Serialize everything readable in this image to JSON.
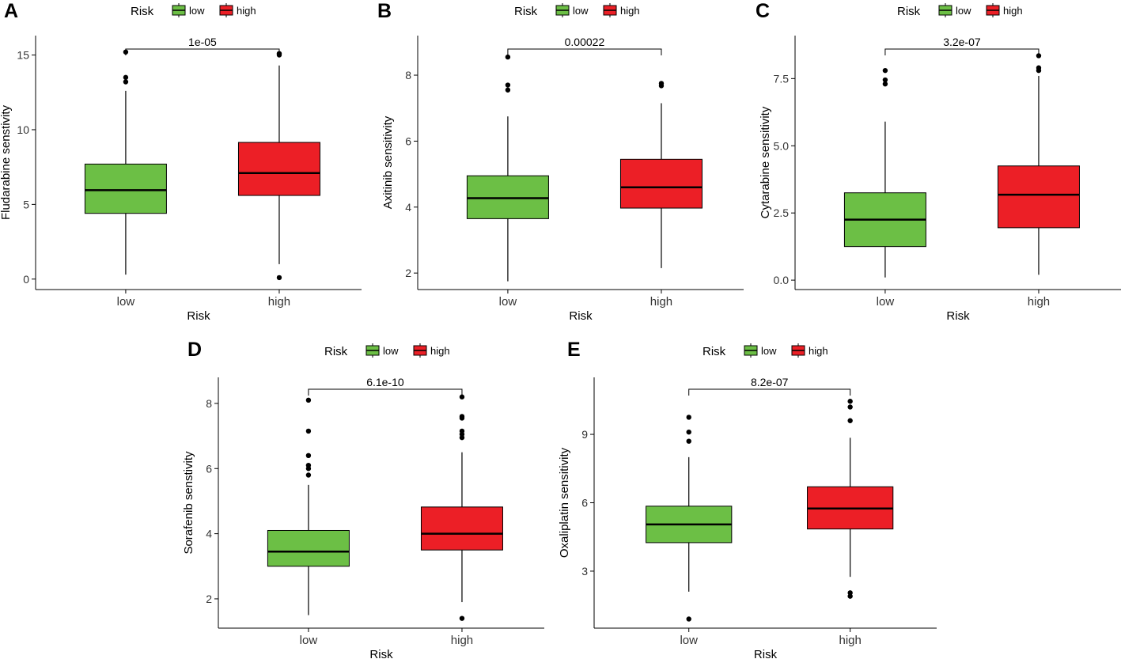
{
  "legend_title": "Risk",
  "colors": {
    "low": "#6cbf45",
    "high": "#ec1f26",
    "line": "#000000"
  },
  "chart_data": [
    {
      "panel": "A",
      "type": "box",
      "ylabel": "Fludarabine senstivity",
      "xlabel": "Risk",
      "categories": [
        "low",
        "high"
      ],
      "ylim": [
        -0.7,
        16.3
      ],
      "yticks": [
        0,
        5,
        10,
        15
      ],
      "tick_labels": [
        "0",
        "5",
        "10",
        "15"
      ],
      "pvalue": "1e-05",
      "legend": [
        "low",
        "high"
      ],
      "boxes": [
        {
          "group": "low",
          "whisker_low": 0.3,
          "q1": 4.4,
          "median": 5.95,
          "q3": 7.7,
          "whisker_high": 12.6,
          "outliers": [
            13.2,
            13.5,
            15.2
          ]
        },
        {
          "group": "high",
          "whisker_low": 1.0,
          "q1": 5.6,
          "median": 7.1,
          "q3": 9.15,
          "whisker_high": 14.3,
          "outliers": [
            0.1,
            15.0,
            15.1
          ]
        }
      ]
    },
    {
      "panel": "B",
      "type": "box",
      "ylabel": "Axitinib sensitivity",
      "xlabel": "Risk",
      "categories": [
        "low",
        "high"
      ],
      "ylim": [
        1.5,
        9.2
      ],
      "yticks": [
        2,
        4,
        6,
        8
      ],
      "tick_labels": [
        "2",
        "4",
        "6",
        "8"
      ],
      "pvalue": "0.00022",
      "legend": [
        "low",
        "high"
      ],
      "boxes": [
        {
          "group": "low",
          "whisker_low": 1.75,
          "q1": 3.65,
          "median": 4.27,
          "q3": 4.95,
          "whisker_high": 6.75,
          "outliers": [
            7.55,
            7.7,
            8.55
          ]
        },
        {
          "group": "high",
          "whisker_low": 2.15,
          "q1": 3.97,
          "median": 4.6,
          "q3": 5.45,
          "whisker_high": 7.15,
          "outliers": [
            7.68,
            7.75
          ]
        }
      ]
    },
    {
      "panel": "C",
      "type": "box",
      "ylabel": "Cytarabine sensitivity",
      "xlabel": "Risk",
      "categories": [
        "low",
        "high"
      ],
      "ylim": [
        -0.35,
        9.1
      ],
      "yticks": [
        0,
        2.5,
        5.0,
        7.5
      ],
      "tick_labels": [
        "0.0",
        "2.5",
        "5.0",
        "7.5"
      ],
      "pvalue": "3.2e-07",
      "legend": [
        "low",
        "high"
      ],
      "boxes": [
        {
          "group": "low",
          "whisker_low": 0.1,
          "q1": 1.25,
          "median": 2.25,
          "q3": 3.25,
          "whisker_high": 5.9,
          "outliers": [
            7.3,
            7.45,
            7.8
          ]
        },
        {
          "group": "high",
          "whisker_low": 0.2,
          "q1": 1.95,
          "median": 3.18,
          "q3": 4.25,
          "whisker_high": 7.6,
          "outliers": [
            7.8,
            7.9,
            8.35
          ]
        }
      ]
    },
    {
      "panel": "D",
      "type": "box",
      "ylabel": "Sorafenib senstivity",
      "xlabel": "Risk",
      "categories": [
        "low",
        "high"
      ],
      "ylim": [
        1.1,
        8.8
      ],
      "yticks": [
        2,
        4,
        6,
        8
      ],
      "tick_labels": [
        "2",
        "4",
        "6",
        "8"
      ],
      "pvalue": "6.1e-10",
      "legend": [
        "low",
        "high"
      ],
      "boxes": [
        {
          "group": "low",
          "whisker_low": 1.5,
          "q1": 3.0,
          "median": 3.45,
          "q3": 4.1,
          "whisker_high": 5.5,
          "outliers": [
            5.8,
            6.0,
            6.1,
            6.4,
            7.15,
            8.1
          ]
        },
        {
          "group": "high",
          "whisker_low": 1.9,
          "q1": 3.5,
          "median": 4.0,
          "q3": 4.82,
          "whisker_high": 6.5,
          "outliers": [
            1.4,
            6.95,
            7.05,
            7.15,
            7.55,
            7.6,
            8.2
          ]
        }
      ]
    },
    {
      "panel": "E",
      "type": "box",
      "ylabel": "Oxaliplatin sensitivity",
      "xlabel": "Risk",
      "categories": [
        "low",
        "high"
      ],
      "ylim": [
        0.5,
        11.5
      ],
      "yticks": [
        3,
        6,
        9
      ],
      "tick_labels": [
        "3",
        "6",
        "9"
      ],
      "pvalue": "8.2e-07",
      "legend": [
        "low",
        "high"
      ],
      "boxes": [
        {
          "group": "low",
          "whisker_low": 2.1,
          "q1": 4.25,
          "median": 5.05,
          "q3": 5.85,
          "whisker_high": 8.0,
          "outliers": [
            0.9,
            8.7,
            9.1,
            9.75
          ]
        },
        {
          "group": "high",
          "whisker_low": 2.75,
          "q1": 4.85,
          "median": 5.75,
          "q3": 6.7,
          "whisker_high": 8.85,
          "outliers": [
            1.9,
            2.05,
            9.6,
            10.2,
            10.45
          ]
        }
      ]
    }
  ]
}
